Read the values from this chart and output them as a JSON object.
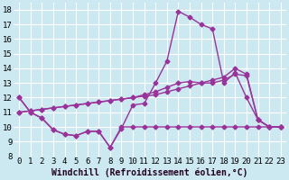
{
  "xlabel": "Windchill (Refroidissement éolien,°C)",
  "background_color": "#cce8f0",
  "grid_color": "#ffffff",
  "line_color": "#993399",
  "ylim": [
    8,
    18.5
  ],
  "yticks": [
    8,
    9,
    10,
    11,
    12,
    13,
    14,
    15,
    16,
    17,
    18
  ],
  "xlim": [
    -0.5,
    23.5
  ],
  "xticks": [
    0,
    1,
    2,
    3,
    4,
    5,
    6,
    7,
    8,
    9,
    10,
    11,
    12,
    13,
    14,
    15,
    16,
    17,
    18,
    19,
    20,
    21,
    22,
    23
  ],
  "y_main": [
    12,
    11,
    10.6,
    9.8,
    9.5,
    9.4,
    9.7,
    9.7,
    8.6,
    9.9,
    11.5,
    11.6,
    13.0,
    14.5,
    17.9,
    17.5,
    17.0,
    16.7,
    13.0,
    13.7,
    12.0,
    10.5,
    10.0,
    10.0
  ],
  "y_linear1": [
    11.0,
    11.1,
    11.2,
    11.3,
    11.4,
    11.5,
    11.6,
    11.7,
    11.8,
    11.9,
    12.0,
    12.1,
    12.2,
    12.4,
    12.6,
    12.8,
    13.0,
    13.2,
    13.4,
    14.0,
    13.6,
    10.5,
    10.0,
    10.0
  ],
  "y_linear2": [
    11.0,
    11.1,
    11.2,
    11.3,
    11.4,
    11.5,
    11.6,
    11.7,
    11.8,
    11.9,
    12.0,
    12.2,
    12.4,
    12.7,
    13.0,
    13.1,
    13.0,
    13.0,
    13.2,
    13.6,
    13.5,
    10.5,
    10.0,
    10.0
  ],
  "y_flat": [
    12,
    11,
    10.6,
    9.8,
    9.5,
    9.4,
    9.7,
    9.7,
    8.6,
    10.0,
    10.0,
    10.0,
    10.0,
    10.0,
    10.0,
    10.0,
    10.0,
    10.0,
    10.0,
    10.0,
    10.0,
    10.0,
    10.0,
    10.0
  ],
  "marker": "D",
  "markersize": 2.5,
  "linewidth": 1.0,
  "tick_fontsize": 6.5,
  "xlabel_fontsize": 7.0
}
